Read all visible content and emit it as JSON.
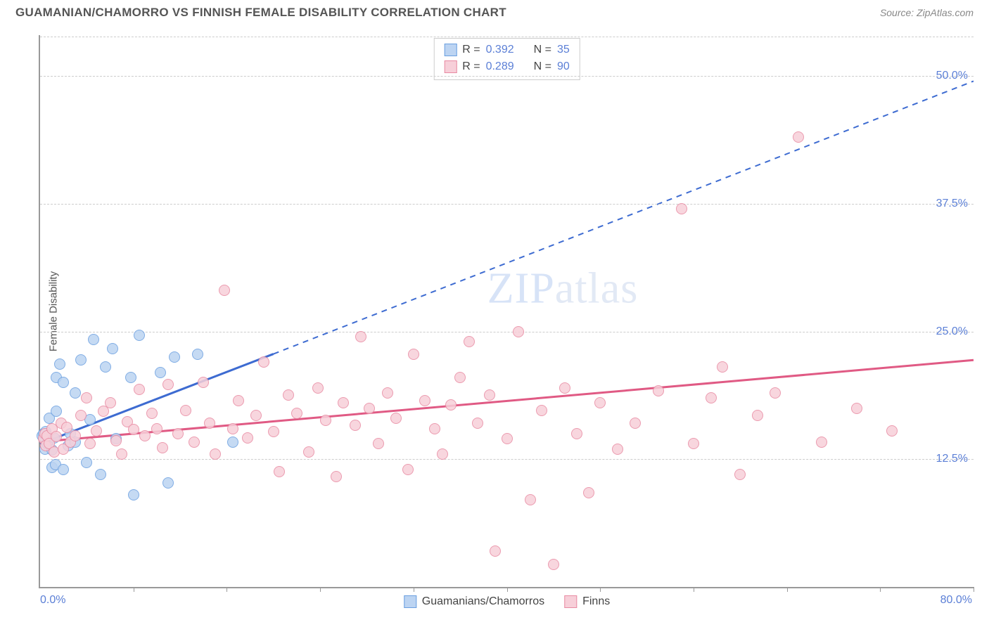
{
  "title": "GUAMANIAN/CHAMORRO VS FINNISH FEMALE DISABILITY CORRELATION CHART",
  "source": "Source: ZipAtlas.com",
  "watermark_a": "ZIP",
  "watermark_b": "atlas",
  "chart": {
    "type": "scatter",
    "xlim": [
      0,
      80
    ],
    "ylim": [
      0,
      54
    ],
    "ylabel": "Female Disability",
    "xlabel_min": "0.0%",
    "xlabel_max": "80.0%",
    "yticks": [
      {
        "v": 12.5,
        "label": "12.5%"
      },
      {
        "v": 25.0,
        "label": "25.0%"
      },
      {
        "v": 37.5,
        "label": "37.5%"
      },
      {
        "v": 50.0,
        "label": "50.0%"
      }
    ],
    "xticks_minor": [
      8,
      16,
      24,
      32,
      40,
      48,
      56,
      64,
      72,
      80
    ],
    "grid_color": "#cccccc",
    "background_color": "#ffffff",
    "axis_color": "#999999",
    "tick_label_color": "#5b7fd6",
    "marker_radius": 8,
    "marker_stroke_width": 1.5,
    "series": [
      {
        "id": "guamanians",
        "label": "Guamanians/Chamorros",
        "R": "0.392",
        "N": "35",
        "fill": "#bcd4f2",
        "stroke": "#6a9fe0",
        "line_color": "#3d6bd1",
        "trend": {
          "x1": 0,
          "y1": 14.0,
          "x2": 20,
          "y2": 22.8,
          "dash_to_x": 80,
          "dash_to_y": 49.5
        },
        "points": [
          [
            0.2,
            14.8
          ],
          [
            0.3,
            15.0
          ],
          [
            0.4,
            13.5
          ],
          [
            0.5,
            15.2
          ],
          [
            0.6,
            14.0
          ],
          [
            0.8,
            16.5
          ],
          [
            1.0,
            11.7
          ],
          [
            1.0,
            13.4
          ],
          [
            1.2,
            14.6
          ],
          [
            1.3,
            12.0
          ],
          [
            1.4,
            17.2
          ],
          [
            1.4,
            20.5
          ],
          [
            1.7,
            21.8
          ],
          [
            2.0,
            20.0
          ],
          [
            2.0,
            11.5
          ],
          [
            2.4,
            13.8
          ],
          [
            2.6,
            15.0
          ],
          [
            3.0,
            19.0
          ],
          [
            3.0,
            14.2
          ],
          [
            3.5,
            22.2
          ],
          [
            4.0,
            12.2
          ],
          [
            4.3,
            16.4
          ],
          [
            4.6,
            24.2
          ],
          [
            5.2,
            11.0
          ],
          [
            5.6,
            21.5
          ],
          [
            6.2,
            23.3
          ],
          [
            6.5,
            14.5
          ],
          [
            7.8,
            20.5
          ],
          [
            8.0,
            9.0
          ],
          [
            8.5,
            24.6
          ],
          [
            10.3,
            21.0
          ],
          [
            11.0,
            10.2
          ],
          [
            11.5,
            22.5
          ],
          [
            13.5,
            22.8
          ],
          [
            16.5,
            14.2
          ]
        ]
      },
      {
        "id": "finns",
        "label": "Finns",
        "R": "0.289",
        "N": "90",
        "fill": "#f7cfd9",
        "stroke": "#e88aa2",
        "line_color": "#e05a84",
        "trend": {
          "x1": 0,
          "y1": 14.2,
          "x2": 80,
          "y2": 22.2
        },
        "points": [
          [
            0.3,
            14.5
          ],
          [
            0.4,
            15.0
          ],
          [
            0.5,
            13.8
          ],
          [
            0.6,
            14.8
          ],
          [
            0.8,
            14.0
          ],
          [
            1.0,
            15.5
          ],
          [
            1.2,
            13.2
          ],
          [
            1.4,
            14.7
          ],
          [
            1.8,
            16.0
          ],
          [
            2.0,
            13.5
          ],
          [
            2.3,
            15.6
          ],
          [
            2.6,
            14.2
          ],
          [
            3.0,
            14.8
          ],
          [
            3.5,
            16.8
          ],
          [
            4.0,
            18.5
          ],
          [
            4.3,
            14.0
          ],
          [
            4.8,
            15.3
          ],
          [
            5.4,
            17.2
          ],
          [
            6.0,
            18.0
          ],
          [
            6.5,
            14.3
          ],
          [
            7.0,
            13.0
          ],
          [
            7.5,
            16.2
          ],
          [
            8.0,
            15.4
          ],
          [
            8.5,
            19.3
          ],
          [
            9.0,
            14.8
          ],
          [
            9.6,
            17.0
          ],
          [
            10.0,
            15.5
          ],
          [
            10.5,
            13.6
          ],
          [
            11.0,
            19.8
          ],
          [
            11.8,
            15.0
          ],
          [
            12.5,
            17.3
          ],
          [
            13.2,
            14.2
          ],
          [
            14.0,
            20.0
          ],
          [
            14.5,
            16.0
          ],
          [
            15.0,
            13.0
          ],
          [
            15.8,
            29.0
          ],
          [
            16.5,
            15.5
          ],
          [
            17.0,
            18.2
          ],
          [
            17.8,
            14.6
          ],
          [
            18.5,
            16.8
          ],
          [
            19.2,
            22.0
          ],
          [
            20.0,
            15.2
          ],
          [
            20.5,
            11.3
          ],
          [
            21.3,
            18.8
          ],
          [
            22.0,
            17.0
          ],
          [
            23.0,
            13.2
          ],
          [
            23.8,
            19.5
          ],
          [
            24.5,
            16.3
          ],
          [
            25.4,
            10.8
          ],
          [
            26.0,
            18.0
          ],
          [
            27.0,
            15.8
          ],
          [
            27.5,
            24.5
          ],
          [
            28.2,
            17.5
          ],
          [
            29.0,
            14.0
          ],
          [
            29.8,
            19.0
          ],
          [
            30.5,
            16.5
          ],
          [
            31.5,
            11.5
          ],
          [
            32.0,
            22.8
          ],
          [
            33.0,
            18.2
          ],
          [
            33.8,
            15.5
          ],
          [
            34.5,
            13.0
          ],
          [
            35.2,
            17.8
          ],
          [
            36.0,
            20.5
          ],
          [
            36.8,
            24.0
          ],
          [
            37.5,
            16.0
          ],
          [
            38.5,
            18.8
          ],
          [
            39.0,
            3.5
          ],
          [
            40.0,
            14.5
          ],
          [
            41.0,
            25.0
          ],
          [
            42.0,
            8.5
          ],
          [
            43.0,
            17.3
          ],
          [
            44.0,
            2.2
          ],
          [
            45.0,
            19.5
          ],
          [
            46.0,
            15.0
          ],
          [
            47.0,
            9.2
          ],
          [
            48.0,
            18.0
          ],
          [
            49.5,
            13.5
          ],
          [
            51.0,
            16.0
          ],
          [
            53.0,
            19.2
          ],
          [
            55.0,
            37.0
          ],
          [
            56.0,
            14.0
          ],
          [
            57.5,
            18.5
          ],
          [
            58.5,
            21.5
          ],
          [
            60.0,
            11.0
          ],
          [
            61.5,
            16.8
          ],
          [
            63.0,
            19.0
          ],
          [
            65.0,
            44.0
          ],
          [
            67.0,
            14.2
          ],
          [
            70.0,
            17.5
          ],
          [
            73.0,
            15.3
          ]
        ]
      }
    ]
  },
  "rn_box": {
    "rows": [
      {
        "swatch_fill": "#bcd4f2",
        "swatch_stroke": "#6a9fe0",
        "R_label": "R =",
        "R_val": "0.392",
        "N_label": "N =",
        "N_val": "35"
      },
      {
        "swatch_fill": "#f7cfd9",
        "swatch_stroke": "#e88aa2",
        "R_label": "R =",
        "R_val": "0.289",
        "N_label": "N =",
        "N_val": "90"
      }
    ]
  }
}
